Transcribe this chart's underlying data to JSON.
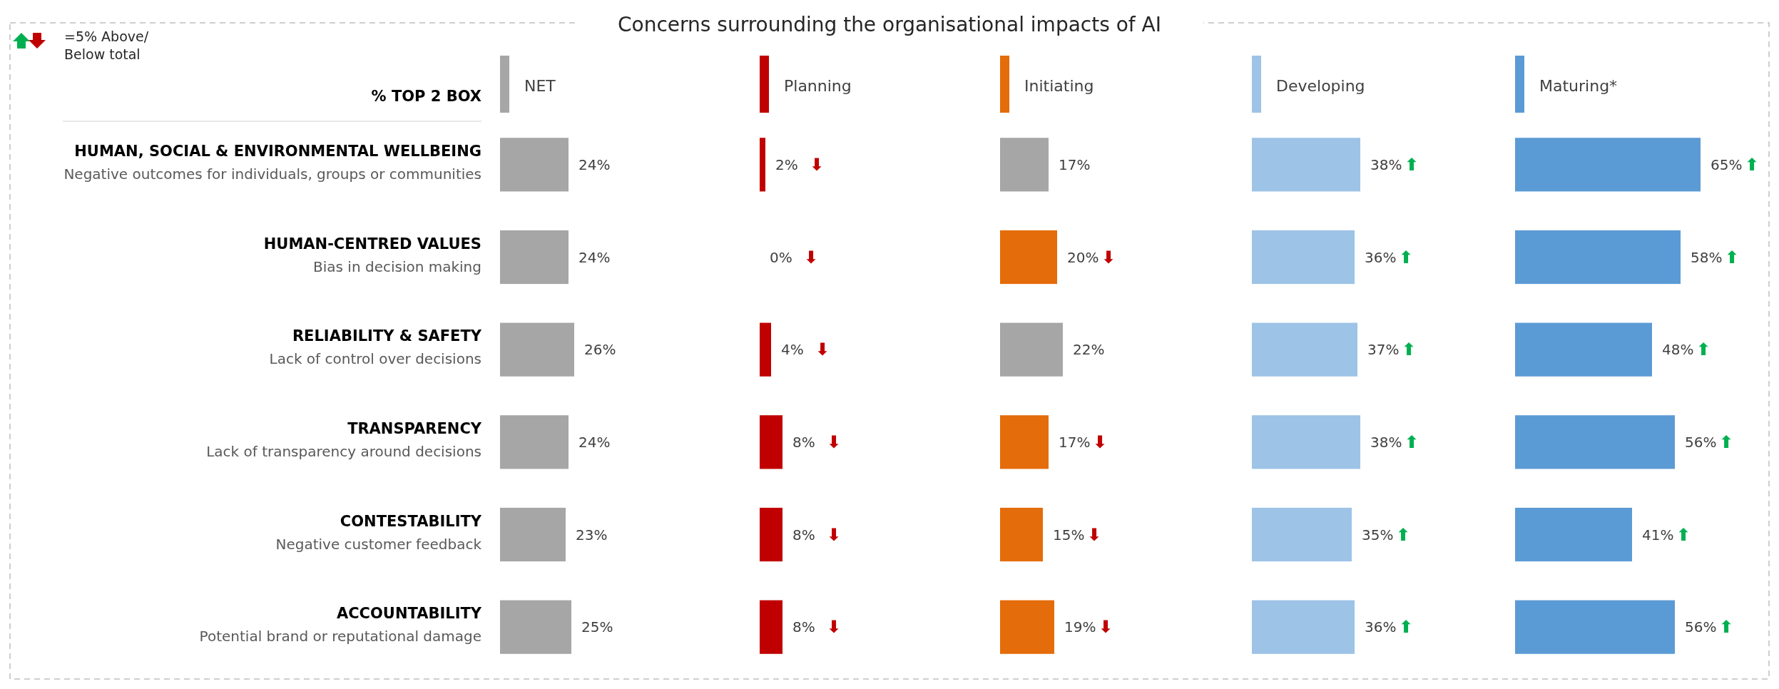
{
  "chart_data": [
    {
      "type": "bar",
      "orientation": "horizontal",
      "ylabel": "% TOP 2 BOX",
      "annotations": [
        "=5% Above/ Below total"
      ],
      "legend": "top left",
      "tick_labels": "y",
      "categories": [
        "HUMAN, SOCIAL & ENVIRONMENTAL WELLBEING\nNegative outcomes for individuals, groups or communities",
        "HUMAN-CENTRED VALUES\nBias in decision making",
        "RELIABILITY & SAFETY\nLack of control over decisions",
        "TRANSPARENCY\nLack of transparency around decisions",
        "CONTESTABILITY\nNegative customer feedback",
        "ACCOUNTABILITY\nPotential brand or reputational damage"
      ],
      "series": [
        {
          "name": "NET",
          "color": "#a6a6a6",
          "values": [
            24,
            24,
            26,
            24,
            23,
            25
          ],
          "value_labels": [
            "24%",
            "24%",
            "26%",
            "24%",
            "23%",
            "25%"
          ]
        }
      ]
    },
    {
      "type": "bar",
      "orientation": "horizontal",
      "title": "Concerns surrounding the organisational impacts of AI",
      "legend": "top",
      "tick_labels": false,
      "categories": [
        "HUMAN, SOCIAL & ENVIRONMENTAL WELLBEING\nNegative outcomes for individuals, groups or communities",
        "HUMAN-CENTRED VALUES\nBias in decision making",
        "RELIABILITY & SAFETY\nLack of control over decisions",
        "TRANSPARENCY\nLack of transparency around decisions",
        "CONTESTABILITY\nNegative customer feedback",
        "ACCOUNTABILITY\nPotential brand or reputational damage"
      ],
      "annotations": [
        {
          "text": "⬇",
          "x": 2,
          "y": "HUMAN, SOCIAL & ENVIRONMENTAL WELLBEING\nNegative outcomes for individuals, groups or communities"
        },
        {
          "text": "⬇",
          "x": 0,
          "y": "HUMAN-CENTRED VALUES\nBias in decision making"
        },
        {
          "text": "⬇",
          "x": 4,
          "y": "RELIABILITY & SAFETY\nLack of control over decisions"
        },
        {
          "text": "⬇",
          "x": 8,
          "y": "TRANSPARENCY\nLack of transparency around decisions"
        },
        {
          "text": "⬇",
          "x": 8,
          "y": "CONTESTABILITY\nNegative customer feedback"
        },
        {
          "text": "⬇",
          "x": 8,
          "y": "ACCOUNTABILITY\nPotential brand or reputational damage"
        }
      ],
      "series": [
        {
          "name": "Planning",
          "color": "#c00000",
          "values": [
            2,
            0,
            4,
            8,
            8,
            8
          ],
          "value_labels": [
            "2%",
            "0%",
            "4%",
            "8%",
            "8%",
            "8%"
          ]
        }
      ]
    },
    {
      "type": "bar",
      "orientation": "horizontal",
      "legend": "top",
      "tick_labels": false,
      "categories": [
        "HUMAN, SOCIAL & ENVIRONMENTAL WELLBEING\nNegative outcomes for individuals, groups or communities",
        "HUMAN-CENTRED VALUES\nBias in decision making",
        "RELIABILITY & SAFETY\nLack of control over decisions",
        "TRANSPARENCY\nLack of transparency around decisions",
        "CONTESTABILITY\nNegative customer feedback",
        "ACCOUNTABILITY\nPotential brand or reputational damage"
      ],
      "annotations": [
        {
          "text": "⬇",
          "x": 20,
          "y": "HUMAN-CENTRED VALUES\nBias in decision making"
        },
        {
          "text": "⬇",
          "x": 17,
          "y": "TRANSPARENCY\nLack of transparency around decisions"
        },
        {
          "text": "⬇",
          "x": 15,
          "y": "CONTESTABILITY\nNegative customer feedback"
        },
        {
          "text": "⬇",
          "x": 19,
          "y": "ACCOUNTABILITY\nPotential brand or reputational damage"
        }
      ],
      "series": [
        {
          "name": "Initiating",
          "color": "#e46c0a",
          "colors": [
            "#a6a6a6",
            "#e46c0a",
            "#a6a6a6",
            "#e46c0a",
            "#e46c0a",
            "#e46c0a"
          ],
          "values": [
            17,
            20,
            22,
            17,
            15,
            19
          ],
          "value_labels": [
            "17%",
            "20%",
            "22%",
            "17%",
            "15%",
            "19%"
          ]
        }
      ]
    },
    {
      "type": "bar",
      "orientation": "horizontal",
      "legend": "top",
      "tick_labels": false,
      "categories": [
        "HUMAN, SOCIAL & ENVIRONMENTAL WELLBEING\nNegative outcomes for individuals, groups or communities",
        "HUMAN-CENTRED VALUES\nBias in decision making",
        "RELIABILITY & SAFETY\nLack of control over decisions",
        "TRANSPARENCY\nLack of transparency around decisions",
        "CONTESTABILITY\nNegative customer feedback",
        "ACCOUNTABILITY\nPotential brand or reputational damage"
      ],
      "annotations": [
        {
          "text": "⬆",
          "x": 38,
          "y": "HUMAN, SOCIAL & ENVIRONMENTAL WELLBEING\nNegative outcomes for individuals, groups or communities"
        },
        {
          "text": "⬆",
          "x": 36,
          "y": "HUMAN-CENTRED VALUES\nBias in decision making"
        },
        {
          "text": "⬆",
          "x": 37,
          "y": "RELIABILITY & SAFETY\nLack of control over decisions"
        },
        {
          "text": "⬆",
          "x": 38,
          "y": "TRANSPARENCY\nLack of transparency around decisions"
        },
        {
          "text": "⬆",
          "x": 35,
          "y": "CONTESTABILITY\nNegative customer feedback"
        },
        {
          "text": "⬆",
          "x": 36,
          "y": "ACCOUNTABILITY\nPotential brand or reputational damage"
        }
      ],
      "series": [
        {
          "name": "Developing",
          "color": "#9dc3e6",
          "values": [
            38,
            36,
            37,
            38,
            35,
            36
          ],
          "value_labels": [
            "38%",
            "36%",
            "37%",
            "38%",
            "35%",
            "36%"
          ]
        }
      ]
    },
    {
      "type": "bar",
      "orientation": "horizontal",
      "legend": "top left",
      "tick_labels": false,
      "categories": [
        "HUMAN, SOCIAL & ENVIRONMENTAL WELLBEING\nNegative outcomes for individuals, groups or communities",
        "HUMAN-CENTRED VALUES\nBias in decision making",
        "RELIABILITY & SAFETY\nLack of control over decisions",
        "TRANSPARENCY\nLack of transparency around decisions",
        "CONTESTABILITY\nNegative customer feedback",
        "ACCOUNTABILITY\nPotential brand or reputational damage"
      ],
      "annotations": [
        {
          "text": "⬆",
          "x": 65,
          "y": "HUMAN, SOCIAL & ENVIRONMENTAL WELLBEING\nNegative outcomes for individuals, groups or communities"
        },
        {
          "text": "⬆",
          "x": 58,
          "y": "HUMAN-CENTRED VALUES\nBias in decision making"
        },
        {
          "text": "⬆",
          "x": 48,
          "y": "RELIABILITY & SAFETY\nLack of control over decisions"
        },
        {
          "text": "⬆",
          "x": 56,
          "y": "TRANSPARENCY\nLack of transparency around decisions"
        },
        {
          "text": "⬆",
          "x": 41,
          "y": "CONTESTABILITY\nNegative customer feedback"
        },
        {
          "text": "⬆",
          "x": 56,
          "y": "ACCOUNTABILITY\nPotential brand or reputational damage"
        }
      ],
      "series": [
        {
          "name": "Maturing*",
          "color": "#5b9bd5",
          "values": [
            65,
            58,
            48,
            56,
            41,
            56
          ],
          "value_labels": [
            "65%",
            "58%",
            "48%",
            "56%",
            "41%",
            "56%"
          ]
        }
      ]
    }
  ]
}
